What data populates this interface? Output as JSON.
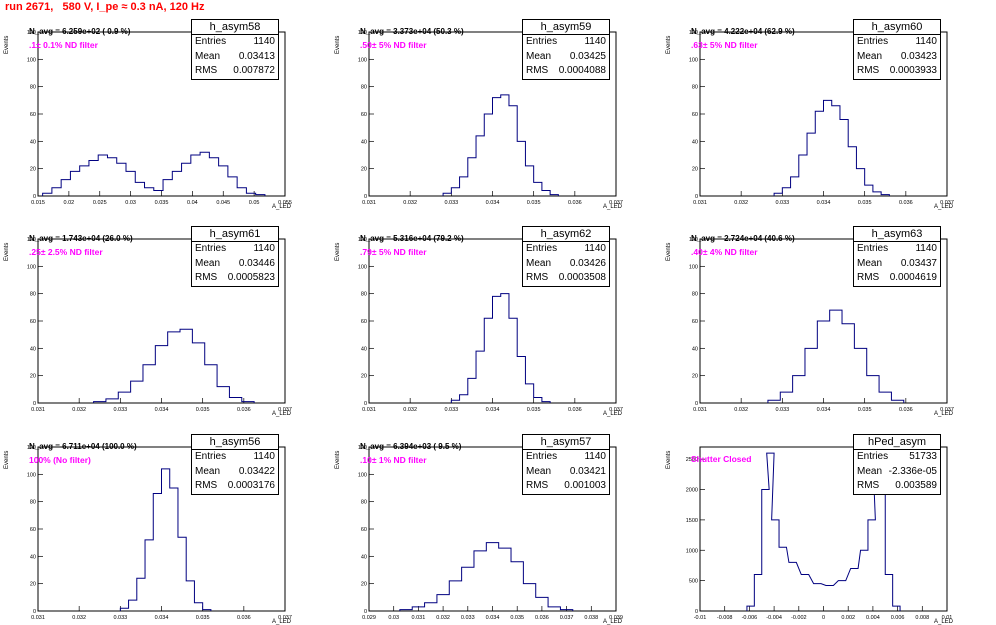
{
  "run_title": "run 2671,   580 V, I_pe ≈ 0.3 nA, 120 Hz",
  "colors": {
    "title": "#ff0000",
    "annotation": "#ff00ff",
    "histogram": "#000080"
  },
  "chart_data": [
    {
      "type": "bar",
      "name": "h_asym58",
      "n_avg": "N_avg = 6.259e+02 ( 0.9 %)",
      "filter": ".1± 0.1% ND filter",
      "stats": {
        "entries": "1140",
        "mean": "0.03413",
        "rms": "0.007872"
      },
      "ylabel": "Events",
      "xlabel": "A_LED",
      "xlim": [
        0.015,
        0.055
      ],
      "ylim": [
        0,
        120
      ],
      "xticks": [
        "0.015",
        "0.02",
        "0.025",
        "0.03",
        "0.035",
        "0.04",
        "0.045",
        "0.05",
        "0.055"
      ],
      "yticks": [
        "0",
        "20",
        "40",
        "60",
        "80",
        "100",
        "120"
      ],
      "bins": [
        0.0165,
        0.018,
        0.0195,
        0.021,
        0.0225,
        0.024,
        0.0255,
        0.027,
        0.0285,
        0.03,
        0.0315,
        0.033,
        0.0345,
        0.036,
        0.0375,
        0.039,
        0.0405,
        0.042,
        0.0435,
        0.045,
        0.0465,
        0.048,
        0.0495,
        0.051
      ],
      "values": [
        2,
        6,
        12,
        18,
        22,
        26,
        30,
        28,
        24,
        18,
        10,
        6,
        4,
        12,
        18,
        24,
        30,
        32,
        28,
        22,
        14,
        6,
        2,
        1
      ]
    },
    {
      "type": "bar",
      "name": "h_asym59",
      "n_avg": "N_avg = 3.373e+04 (50.3 %)",
      "filter": ".50± 5% ND filter",
      "stats": {
        "entries": "1140",
        "mean": "0.03425",
        "rms": "0.0004088"
      },
      "ylabel": "Events",
      "xlabel": "A_LED",
      "xlim": [
        0.031,
        0.037
      ],
      "ylim": [
        0,
        120
      ],
      "xticks": [
        "0.031",
        "0.032",
        "0.033",
        "0.034",
        "0.035",
        "0.036",
        "0.037"
      ],
      "yticks": [
        "0",
        "20",
        "40",
        "60",
        "80",
        "100",
        "120"
      ],
      "bins": [
        0.0329,
        0.0331,
        0.0333,
        0.0335,
        0.0337,
        0.0339,
        0.0341,
        0.0343,
        0.0345,
        0.0347,
        0.0349,
        0.0351,
        0.0353,
        0.0355
      ],
      "values": [
        2,
        6,
        14,
        28,
        44,
        60,
        72,
        74,
        66,
        40,
        22,
        10,
        4,
        1
      ]
    },
    {
      "type": "bar",
      "name": "h_asym60",
      "n_avg": "N_avg = 4.222e+04 (62.9 %)",
      "filter": ".63± 5% ND filter",
      "stats": {
        "entries": "1140",
        "mean": "0.03423",
        "rms": "0.0003933"
      },
      "ylabel": "Events",
      "xlabel": "A_LED",
      "xlim": [
        0.031,
        0.037
      ],
      "ylim": [
        0,
        120
      ],
      "xticks": [
        "0.031",
        "0.032",
        "0.033",
        "0.034",
        "0.035",
        "0.036",
        "0.037"
      ],
      "yticks": [
        "0",
        "20",
        "40",
        "60",
        "80",
        "100",
        "120"
      ],
      "bins": [
        0.0329,
        0.0331,
        0.0333,
        0.0335,
        0.0337,
        0.0339,
        0.0341,
        0.0343,
        0.0345,
        0.0347,
        0.0349,
        0.0351,
        0.0353,
        0.0355
      ],
      "values": [
        2,
        6,
        14,
        30,
        46,
        62,
        70,
        66,
        56,
        36,
        20,
        8,
        3,
        1
      ]
    },
    {
      "type": "bar",
      "name": "h_asym61",
      "n_avg": "N_avg = 1.743e+04 (26.0 %)",
      "filter": ".25± 2.5% ND filter",
      "stats": {
        "entries": "1140",
        "mean": "0.03446",
        "rms": "0.0005823"
      },
      "ylabel": "Events",
      "xlabel": "A_LED",
      "xlim": [
        0.031,
        0.037
      ],
      "ylim": [
        0,
        120
      ],
      "xticks": [
        "0.031",
        "0.032",
        "0.033",
        "0.034",
        "0.035",
        "0.036",
        "0.037"
      ],
      "yticks": [
        "0",
        "20",
        "40",
        "60",
        "80",
        "100",
        "120"
      ],
      "bins": [
        0.0325,
        0.0328,
        0.0331,
        0.0334,
        0.0337,
        0.034,
        0.0343,
        0.0346,
        0.0349,
        0.0352,
        0.0355,
        0.0358,
        0.0361
      ],
      "values": [
        1,
        3,
        8,
        16,
        28,
        42,
        52,
        54,
        44,
        28,
        12,
        4,
        1
      ]
    },
    {
      "type": "bar",
      "name": "h_asym62",
      "n_avg": "N_avg = 5.316e+04 (79.2 %)",
      "filter": ".79± 5% ND filter",
      "stats": {
        "entries": "1140",
        "mean": "0.03426",
        "rms": "0.0003508"
      },
      "ylabel": "Events",
      "xlabel": "A_LED",
      "xlim": [
        0.031,
        0.037
      ],
      "ylim": [
        0,
        120
      ],
      "xticks": [
        "0.031",
        "0.032",
        "0.033",
        "0.034",
        "0.035",
        "0.036",
        "0.037"
      ],
      "yticks": [
        "0",
        "20",
        "40",
        "60",
        "80",
        "100",
        "120"
      ],
      "bins": [
        0.0331,
        0.0333,
        0.0335,
        0.0337,
        0.0339,
        0.0341,
        0.0343,
        0.0345,
        0.0347,
        0.0349,
        0.0351,
        0.0353
      ],
      "values": [
        2,
        6,
        18,
        38,
        62,
        78,
        80,
        62,
        34,
        14,
        4,
        1
      ]
    },
    {
      "type": "bar",
      "name": "h_asym63",
      "n_avg": "N_avg = 2.724e+04 (40.6 %)",
      "filter": ".40± 4% ND filter",
      "stats": {
        "entries": "1140",
        "mean": "0.03437",
        "rms": "0.0004619"
      },
      "ylabel": "Events",
      "xlabel": "A_LED",
      "xlim": [
        0.031,
        0.037
      ],
      "ylim": [
        0,
        120
      ],
      "xticks": [
        "0.031",
        "0.032",
        "0.033",
        "0.034",
        "0.035",
        "0.036",
        "0.037"
      ],
      "yticks": [
        "0",
        "20",
        "40",
        "60",
        "80",
        "100",
        "120"
      ],
      "bins": [
        0.0328,
        0.0331,
        0.0334,
        0.0337,
        0.034,
        0.0343,
        0.0346,
        0.0349,
        0.0352,
        0.0355,
        0.0358
      ],
      "values": [
        2,
        8,
        20,
        40,
        60,
        68,
        58,
        40,
        20,
        8,
        2
      ]
    },
    {
      "type": "bar",
      "name": "h_asym56",
      "n_avg": "N_avg = 6.711e+04 (100.0 %)",
      "filter": "100% (No filter)",
      "stats": {
        "entries": "1140",
        "mean": "0.03422",
        "rms": "0.0003176"
      },
      "ylabel": "Events",
      "xlabel": "A_LED",
      "xlim": [
        0.031,
        0.037
      ],
      "ylim": [
        0,
        120
      ],
      "xticks": [
        "0.031",
        "0.032",
        "0.033",
        "0.034",
        "0.035",
        "0.036",
        "0.037"
      ],
      "yticks": [
        "0",
        "20",
        "40",
        "60",
        "80",
        "100",
        "120"
      ],
      "bins": [
        0.0331,
        0.0333,
        0.0335,
        0.0337,
        0.0339,
        0.0341,
        0.0343,
        0.0345,
        0.0347,
        0.0349,
        0.0351
      ],
      "values": [
        2,
        8,
        24,
        52,
        86,
        104,
        90,
        54,
        22,
        6,
        1
      ]
    },
    {
      "type": "bar",
      "name": "h_asym57",
      "n_avg": "N_avg = 6.394e+03 ( 9.5 %)",
      "filter": ".10± 1% ND filter",
      "stats": {
        "entries": "1140",
        "mean": "0.03421",
        "rms": "0.001003"
      },
      "ylabel": "Events",
      "xlabel": "A_LED",
      "xlim": [
        0.029,
        0.039
      ],
      "ylim": [
        0,
        120
      ],
      "xticks": [
        "0.029",
        "0.03",
        "0.031",
        "0.032",
        "0.033",
        "0.034",
        "0.035",
        "0.036",
        "0.037",
        "0.038",
        "0.039"
      ],
      "yticks": [
        "0",
        "20",
        "40",
        "60",
        "80",
        "100",
        "120"
      ],
      "bins": [
        0.0305,
        0.031,
        0.0315,
        0.032,
        0.0325,
        0.033,
        0.0335,
        0.034,
        0.0345,
        0.035,
        0.0355,
        0.036,
        0.0365,
        0.037
      ],
      "values": [
        1,
        3,
        6,
        12,
        22,
        32,
        44,
        50,
        46,
        36,
        20,
        10,
        3,
        1
      ]
    },
    {
      "type": "bar",
      "name": "hPed_asym",
      "n_avg": "",
      "filter": "Shutter Closed",
      "stats": {
        "entries": "51733",
        "mean": "-2.336e-05",
        "rms": "0.003589"
      },
      "ylabel": "Events",
      "xlabel": "A_LED",
      "xlim": [
        -0.01,
        0.01
      ],
      "ylim": [
        0,
        2700
      ],
      "xticks": [
        "-0.01",
        "-0.008",
        "-0.006",
        "-0.004",
        "-0.002",
        "0",
        "0.002",
        "0.004",
        "0.006",
        "0.008",
        "0.01"
      ],
      "yticks": [
        "0",
        "500",
        "1000",
        "1500",
        "2000",
        "2500"
      ],
      "bins": [
        -0.0059,
        -0.0053,
        -0.0047,
        -0.0043,
        -0.0039,
        -0.0033,
        -0.0025,
        -0.0015,
        -0.0005,
        0.0005,
        0.0015,
        0.0025,
        0.0033,
        0.0039,
        0.0043,
        0.0047,
        0.0053,
        0.0059
      ],
      "values": [
        80,
        600,
        2000,
        2600,
        1500,
        1050,
        800,
        600,
        450,
        420,
        500,
        700,
        1000,
        1500,
        2500,
        2300,
        600,
        80
      ]
    }
  ]
}
